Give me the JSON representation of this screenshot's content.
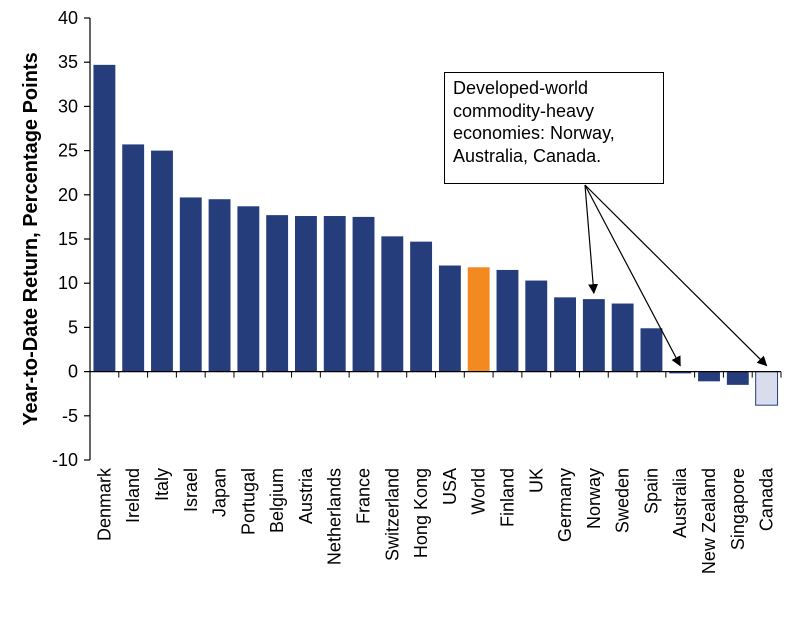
{
  "chart_data": {
    "type": "bar",
    "title": "",
    "xlabel": "",
    "ylabel": "Year-to-Date Return, Percentage Points",
    "ylim": [
      -10,
      40
    ],
    "yticks": [
      "40",
      "35",
      "30",
      "25",
      "20",
      "15",
      "10",
      "5",
      "0",
      "-5",
      "-10"
    ],
    "grid": false,
    "categories": [
      "Denmark",
      "Ireland",
      "Italy",
      "Israel",
      "Japan",
      "Portugal",
      "Belgium",
      "Austria",
      "Netherlands",
      "France",
      "Switzerland",
      "Hong Kong",
      "USA",
      "World",
      "Finland",
      "UK",
      "Germany",
      "Norway",
      "Sweden",
      "Spain",
      "Australia",
      "New Zealand",
      "Singapore",
      "Canada"
    ],
    "values": [
      34.7,
      25.7,
      25.0,
      19.7,
      19.5,
      18.7,
      17.7,
      17.6,
      17.6,
      17.5,
      15.3,
      14.7,
      12.0,
      11.8,
      11.5,
      10.3,
      8.4,
      8.2,
      7.7,
      4.9,
      -0.2,
      -1.1,
      -1.5,
      -3.8
    ],
    "bar_colors": [
      "#253d7a",
      "#253d7a",
      "#253d7a",
      "#253d7a",
      "#253d7a",
      "#253d7a",
      "#253d7a",
      "#253d7a",
      "#253d7a",
      "#253d7a",
      "#253d7a",
      "#253d7a",
      "#253d7a",
      "#f28a1f",
      "#253d7a",
      "#253d7a",
      "#253d7a",
      "#253d7a",
      "#253d7a",
      "#253d7a",
      "#253d7a",
      "#253d7a",
      "#253d7a",
      "#d9dced"
    ],
    "annotation": {
      "lines": [
        "Developed-world",
        "commodity-heavy",
        "economies: Norway,",
        "Australia, Canada."
      ],
      "targets": [
        "Norway",
        "Australia",
        "Canada"
      ]
    }
  }
}
